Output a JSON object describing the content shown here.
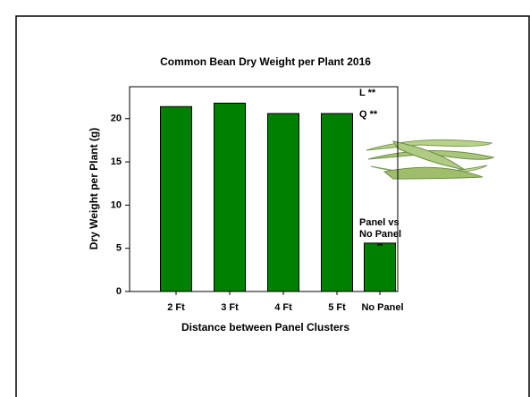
{
  "chart_data": {
    "type": "bar",
    "title": "Common Bean Dry Weight per Plant 2016",
    "x_label": "Distance between Panel Clusters",
    "y_label": "Dry Weight per Plant (g)",
    "categories": [
      "2 Ft",
      "3 Ft",
      "4 Ft",
      "5 Ft",
      "No Panel"
    ],
    "values": [
      21.4,
      21.8,
      20.6,
      20.6,
      5.6
    ],
    "color": "#008000",
    "ylim": [
      0,
      23.7
    ],
    "yticks": [
      0,
      5,
      10,
      15,
      20
    ],
    "annotations": [
      "L **",
      "Q **",
      "Panel vs",
      "No Panel",
      "**"
    ]
  }
}
